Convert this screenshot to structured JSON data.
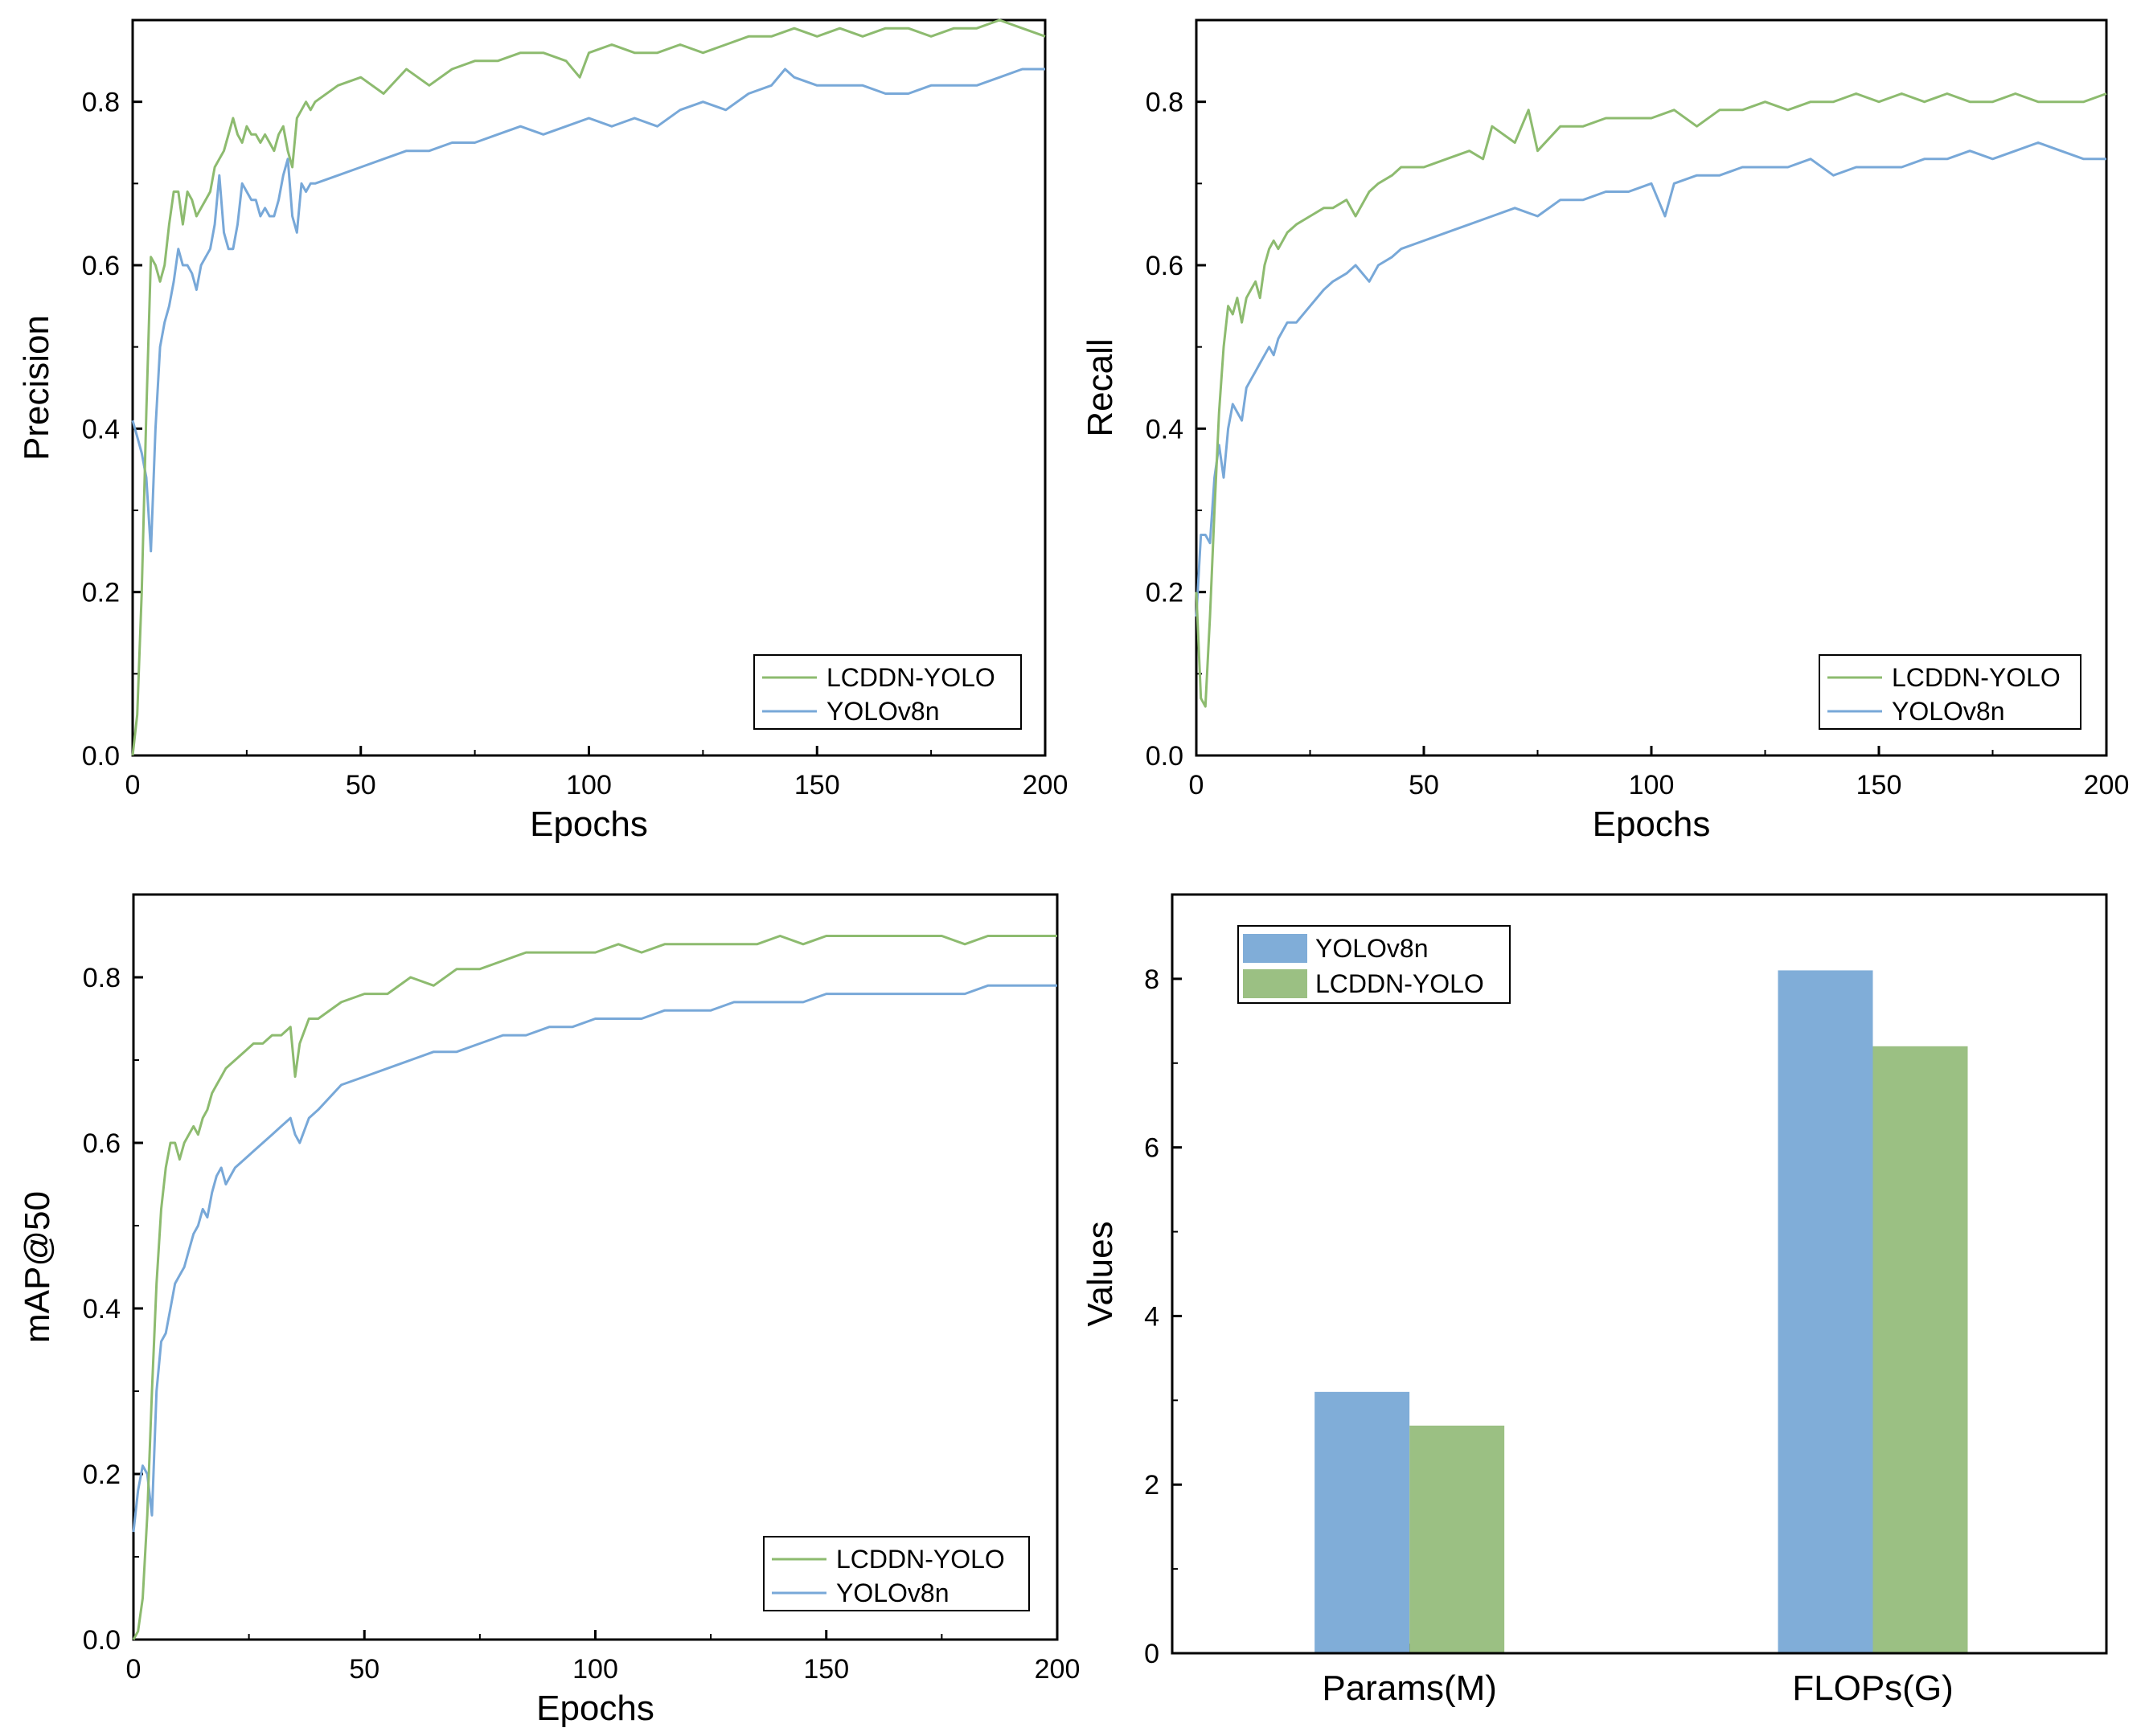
{
  "chart_data": [
    {
      "type": "line",
      "id": "precision",
      "xlabel": "Epochs",
      "ylabel": "Precision",
      "xlim": [
        0,
        200
      ],
      "ylim": [
        0,
        0.9
      ],
      "xticks": [
        0,
        50,
        100,
        150,
        200
      ],
      "xtick_labels": [
        "0",
        "50",
        "100",
        "150",
        "200"
      ],
      "yticks": [
        0,
        0.2,
        0.4,
        0.6,
        0.8
      ],
      "ytick_labels": [
        "0.0",
        "0.2",
        "0.4",
        "0.6",
        "0.8"
      ],
      "legend_position": "bottom-right",
      "series": [
        {
          "name": "LCDDN-YOLO",
          "color": "#8dbb6f",
          "x": [
            0,
            1,
            2,
            3,
            4,
            5,
            6,
            7,
            8,
            9,
            10,
            11,
            12,
            13,
            14,
            15,
            16,
            17,
            18,
            19,
            20,
            21,
            22,
            23,
            24,
            25,
            26,
            27,
            28,
            29,
            30,
            31,
            32,
            33,
            34,
            35,
            36,
            37,
            38,
            39,
            40,
            45,
            50,
            55,
            60,
            65,
            70,
            75,
            80,
            85,
            90,
            95,
            98,
            100,
            105,
            110,
            115,
            120,
            125,
            130,
            135,
            140,
            145,
            150,
            155,
            160,
            165,
            170,
            175,
            180,
            185,
            190,
            195,
            200
          ],
          "y": [
            0.0,
            0.05,
            0.2,
            0.42,
            0.61,
            0.6,
            0.58,
            0.6,
            0.65,
            0.69,
            0.69,
            0.65,
            0.69,
            0.68,
            0.66,
            0.67,
            0.68,
            0.69,
            0.72,
            0.73,
            0.74,
            0.76,
            0.78,
            0.76,
            0.75,
            0.77,
            0.76,
            0.76,
            0.75,
            0.76,
            0.75,
            0.74,
            0.76,
            0.77,
            0.74,
            0.72,
            0.78,
            0.79,
            0.8,
            0.79,
            0.8,
            0.82,
            0.83,
            0.81,
            0.84,
            0.82,
            0.84,
            0.85,
            0.85,
            0.86,
            0.86,
            0.85,
            0.83,
            0.86,
            0.87,
            0.86,
            0.86,
            0.87,
            0.86,
            0.87,
            0.88,
            0.88,
            0.89,
            0.88,
            0.89,
            0.88,
            0.89,
            0.89,
            0.88,
            0.89,
            0.89,
            0.9,
            0.89,
            0.88
          ]
        },
        {
          "name": "YOLOv8n",
          "color": "#78a8d8",
          "x": [
            0,
            1,
            2,
            3,
            4,
            5,
            6,
            7,
            8,
            9,
            10,
            11,
            12,
            13,
            14,
            15,
            16,
            17,
            18,
            19,
            20,
            21,
            22,
            23,
            24,
            25,
            26,
            27,
            28,
            29,
            30,
            31,
            32,
            33,
            34,
            35,
            36,
            37,
            38,
            39,
            40,
            45,
            50,
            55,
            60,
            65,
            70,
            75,
            80,
            85,
            90,
            95,
            100,
            105,
            110,
            115,
            120,
            125,
            130,
            135,
            140,
            143,
            145,
            150,
            155,
            160,
            165,
            170,
            175,
            180,
            185,
            190,
            195,
            200
          ],
          "y": [
            0.41,
            0.39,
            0.37,
            0.34,
            0.25,
            0.4,
            0.5,
            0.53,
            0.55,
            0.58,
            0.62,
            0.6,
            0.6,
            0.59,
            0.57,
            0.6,
            0.61,
            0.62,
            0.65,
            0.71,
            0.64,
            0.62,
            0.62,
            0.65,
            0.7,
            0.69,
            0.68,
            0.68,
            0.66,
            0.67,
            0.66,
            0.66,
            0.68,
            0.71,
            0.73,
            0.66,
            0.64,
            0.7,
            0.69,
            0.7,
            0.7,
            0.71,
            0.72,
            0.73,
            0.74,
            0.74,
            0.75,
            0.75,
            0.76,
            0.77,
            0.76,
            0.77,
            0.78,
            0.77,
            0.78,
            0.77,
            0.79,
            0.8,
            0.79,
            0.81,
            0.82,
            0.84,
            0.83,
            0.82,
            0.82,
            0.82,
            0.81,
            0.81,
            0.82,
            0.82,
            0.82,
            0.83,
            0.84,
            0.84
          ]
        }
      ]
    },
    {
      "type": "line",
      "id": "recall",
      "xlabel": "Epochs",
      "ylabel": "Recall",
      "xlim": [
        0,
        200
      ],
      "ylim": [
        0,
        0.9
      ],
      "xticks": [
        0,
        50,
        100,
        150,
        200
      ],
      "xtick_labels": [
        "0",
        "50",
        "100",
        "150",
        "200"
      ],
      "yticks": [
        0,
        0.2,
        0.4,
        0.6,
        0.8
      ],
      "ytick_labels": [
        "0.0",
        "0.2",
        "0.4",
        "0.6",
        "0.8"
      ],
      "legend_position": "bottom-right",
      "series": [
        {
          "name": "LCDDN-YOLO",
          "color": "#8dbb6f",
          "x": [
            0,
            1,
            2,
            3,
            4,
            5,
            6,
            7,
            8,
            9,
            10,
            11,
            12,
            13,
            14,
            15,
            16,
            17,
            18,
            20,
            22,
            25,
            28,
            30,
            33,
            35,
            38,
            40,
            43,
            45,
            50,
            55,
            60,
            63,
            65,
            70,
            73,
            75,
            80,
            85,
            90,
            95,
            100,
            105,
            110,
            115,
            120,
            125,
            130,
            135,
            140,
            145,
            150,
            155,
            160,
            165,
            170,
            175,
            180,
            185,
            190,
            195,
            200
          ],
          "y": [
            0.2,
            0.07,
            0.06,
            0.17,
            0.3,
            0.42,
            0.5,
            0.55,
            0.54,
            0.56,
            0.53,
            0.56,
            0.57,
            0.58,
            0.56,
            0.6,
            0.62,
            0.63,
            0.62,
            0.64,
            0.65,
            0.66,
            0.67,
            0.67,
            0.68,
            0.66,
            0.69,
            0.7,
            0.71,
            0.72,
            0.72,
            0.73,
            0.74,
            0.73,
            0.77,
            0.75,
            0.79,
            0.74,
            0.77,
            0.77,
            0.78,
            0.78,
            0.78,
            0.79,
            0.77,
            0.79,
            0.79,
            0.8,
            0.79,
            0.8,
            0.8,
            0.81,
            0.8,
            0.81,
            0.8,
            0.81,
            0.8,
            0.8,
            0.81,
            0.8,
            0.8,
            0.8,
            0.81
          ]
        },
        {
          "name": "YOLOv8n",
          "color": "#78a8d8",
          "x": [
            0,
            1,
            2,
            3,
            4,
            5,
            6,
            7,
            8,
            9,
            10,
            11,
            12,
            13,
            14,
            15,
            16,
            17,
            18,
            20,
            22,
            25,
            28,
            30,
            33,
            35,
            38,
            40,
            43,
            45,
            50,
            55,
            60,
            65,
            70,
            75,
            80,
            85,
            90,
            95,
            100,
            103,
            105,
            110,
            115,
            120,
            125,
            130,
            135,
            140,
            145,
            150,
            155,
            160,
            165,
            170,
            175,
            180,
            185,
            190,
            195,
            200
          ],
          "y": [
            0.17,
            0.27,
            0.27,
            0.26,
            0.34,
            0.38,
            0.34,
            0.4,
            0.43,
            0.42,
            0.41,
            0.45,
            0.46,
            0.47,
            0.48,
            0.49,
            0.5,
            0.49,
            0.51,
            0.53,
            0.53,
            0.55,
            0.57,
            0.58,
            0.59,
            0.6,
            0.58,
            0.6,
            0.61,
            0.62,
            0.63,
            0.64,
            0.65,
            0.66,
            0.67,
            0.66,
            0.68,
            0.68,
            0.69,
            0.69,
            0.7,
            0.66,
            0.7,
            0.71,
            0.71,
            0.72,
            0.72,
            0.72,
            0.73,
            0.71,
            0.72,
            0.72,
            0.72,
            0.73,
            0.73,
            0.74,
            0.73,
            0.74,
            0.75,
            0.74,
            0.73,
            0.73
          ]
        }
      ]
    },
    {
      "type": "line",
      "id": "map50",
      "xlabel": "Epochs",
      "ylabel": "mAP@50",
      "xlim": [
        0,
        200
      ],
      "ylim": [
        0,
        0.9
      ],
      "xticks": [
        0,
        50,
        100,
        150,
        200
      ],
      "xtick_labels": [
        "0",
        "50",
        "100",
        "150",
        "200"
      ],
      "yticks": [
        0,
        0.2,
        0.4,
        0.6,
        0.8
      ],
      "ytick_labels": [
        "0.0",
        "0.2",
        "0.4",
        "0.6",
        "0.8"
      ],
      "legend_position": "bottom-right",
      "series": [
        {
          "name": "LCDDN-YOLO",
          "color": "#8dbb6f",
          "x": [
            0,
            1,
            2,
            3,
            4,
            5,
            6,
            7,
            8,
            9,
            10,
            11,
            12,
            13,
            14,
            15,
            16,
            17,
            18,
            19,
            20,
            22,
            24,
            26,
            28,
            30,
            32,
            34,
            35,
            36,
            38,
            40,
            45,
            50,
            55,
            60,
            65,
            70,
            75,
            80,
            85,
            90,
            95,
            100,
            105,
            110,
            115,
            120,
            125,
            130,
            135,
            140,
            145,
            150,
            155,
            160,
            165,
            170,
            175,
            180,
            185,
            190,
            195,
            200
          ],
          "y": [
            0.0,
            0.01,
            0.05,
            0.15,
            0.3,
            0.43,
            0.52,
            0.57,
            0.6,
            0.6,
            0.58,
            0.6,
            0.61,
            0.62,
            0.61,
            0.63,
            0.64,
            0.66,
            0.67,
            0.68,
            0.69,
            0.7,
            0.71,
            0.72,
            0.72,
            0.73,
            0.73,
            0.74,
            0.68,
            0.72,
            0.75,
            0.75,
            0.77,
            0.78,
            0.78,
            0.8,
            0.79,
            0.81,
            0.81,
            0.82,
            0.83,
            0.83,
            0.83,
            0.83,
            0.84,
            0.83,
            0.84,
            0.84,
            0.84,
            0.84,
            0.84,
            0.85,
            0.84,
            0.85,
            0.85,
            0.85,
            0.85,
            0.85,
            0.85,
            0.84,
            0.85,
            0.85,
            0.85,
            0.85
          ]
        },
        {
          "name": "YOLOv8n",
          "color": "#78a8d8",
          "x": [
            0,
            1,
            2,
            3,
            4,
            5,
            6,
            7,
            8,
            9,
            10,
            11,
            12,
            13,
            14,
            15,
            16,
            17,
            18,
            19,
            20,
            22,
            24,
            26,
            28,
            30,
            32,
            34,
            35,
            36,
            38,
            40,
            45,
            50,
            55,
            60,
            65,
            70,
            75,
            80,
            85,
            90,
            95,
            100,
            105,
            110,
            115,
            120,
            125,
            130,
            135,
            140,
            145,
            150,
            155,
            160,
            165,
            170,
            175,
            180,
            185,
            190,
            195,
            200
          ],
          "y": [
            0.13,
            0.18,
            0.21,
            0.2,
            0.15,
            0.3,
            0.36,
            0.37,
            0.4,
            0.43,
            0.44,
            0.45,
            0.47,
            0.49,
            0.5,
            0.52,
            0.51,
            0.54,
            0.56,
            0.57,
            0.55,
            0.57,
            0.58,
            0.59,
            0.6,
            0.61,
            0.62,
            0.63,
            0.61,
            0.6,
            0.63,
            0.64,
            0.67,
            0.68,
            0.69,
            0.7,
            0.71,
            0.71,
            0.72,
            0.73,
            0.73,
            0.74,
            0.74,
            0.75,
            0.75,
            0.75,
            0.76,
            0.76,
            0.76,
            0.77,
            0.77,
            0.77,
            0.77,
            0.78,
            0.78,
            0.78,
            0.78,
            0.78,
            0.78,
            0.78,
            0.79,
            0.79,
            0.79,
            0.79
          ]
        }
      ]
    },
    {
      "type": "bar",
      "id": "params-flops",
      "xlabel": "",
      "ylabel": "Values",
      "ylim": [
        0,
        9
      ],
      "yticks": [
        0,
        2,
        4,
        6,
        8
      ],
      "ytick_labels": [
        "0",
        "2",
        "4",
        "6",
        "8"
      ],
      "categories": [
        "Params(M)",
        "FLOPs(G)"
      ],
      "legend_position": "top-left",
      "series": [
        {
          "name": "YOLOv8n",
          "color": "#80add8",
          "values": [
            3.1,
            8.1
          ]
        },
        {
          "name": "LCDDN-YOLO",
          "color": "#9bc083",
          "values": [
            2.7,
            7.2
          ]
        }
      ]
    }
  ]
}
